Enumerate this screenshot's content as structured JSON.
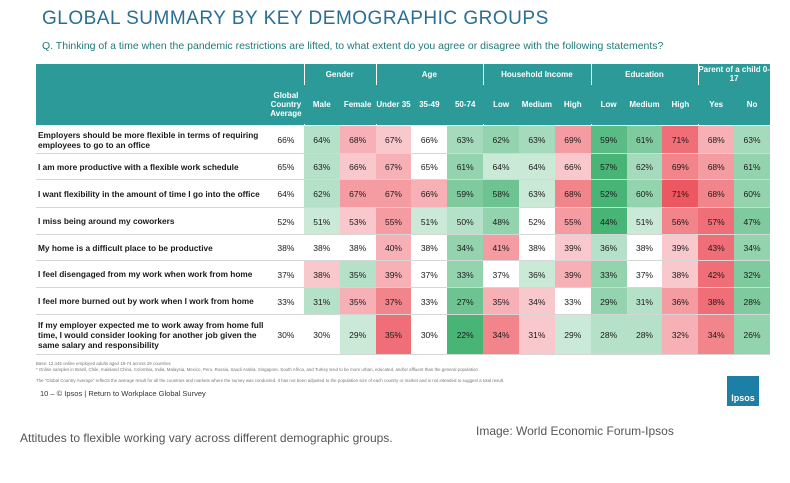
{
  "title": "GLOBAL SUMMARY BY KEY DEMOGRAPHIC GROUPS",
  "question": "Q. Thinking of a time when the pandemic restrictions are lifted, to what extent do you agree or disagree with the following statements?",
  "footnotes": [
    "Base: 12,445 online employed adults aged 18-74 across 29 countries",
    "* Online samples in Brazil, Chile, mainland China, Colombia, India, Malaysia, Mexico, Peru, Russia, Saudi Arabia, Singapore, South Africa, and Turkey tend to be more urban, educated, and/or affluent than the general population",
    "The \"Global Country Average\" reflects the average result for all the countries and markets where the survey was conducted. It has not been adjusted to the population size of each country or market and is not intended to suggest a total result."
  ],
  "page_ref": "10 –  © Ipsos | Return to Workplace Global Survey",
  "logo_text": "Ipsos",
  "caption": "Attitudes to flexible working vary across different demographic groups.",
  "credit": "Image: World Economic Forum-Ipsos",
  "colors": {
    "header": "#2b9a99",
    "high": "#ec4a55",
    "low": "#3aae6c",
    "title": "#2a6f93"
  },
  "chart_data": {
    "type": "table",
    "groups": [
      {
        "label": "",
        "span": 1
      },
      {
        "label": "Gender",
        "span": 2
      },
      {
        "label": "Age",
        "span": 3
      },
      {
        "label": "Household Income",
        "span": 3
      },
      {
        "label": "Education",
        "span": 3
      },
      {
        "label": "Parent of a child 0-17",
        "span": 2
      }
    ],
    "columns": [
      "Global Country Average",
      "Male",
      "Female",
      "Under 35",
      "35-49",
      "50-74",
      "Low",
      "Medium",
      "High",
      "Low",
      "Medium",
      "High",
      "Yes",
      "No"
    ],
    "rows": [
      {
        "statement": "Employers should be more flexible in terms of requiring employees to go to an office",
        "values": [
          66,
          64,
          68,
          67,
          66,
          63,
          62,
          63,
          69,
          59,
          61,
          71,
          68,
          63
        ]
      },
      {
        "statement": "I am more productive with a flexible work schedule",
        "values": [
          65,
          63,
          66,
          67,
          65,
          61,
          64,
          64,
          66,
          57,
          62,
          69,
          68,
          61
        ]
      },
      {
        "statement": "I want flexibility in the amount of time I go into the office",
        "values": [
          64,
          62,
          67,
          67,
          66,
          59,
          58,
          63,
          68,
          52,
          60,
          71,
          68,
          60
        ]
      },
      {
        "statement": "I miss being around my coworkers",
        "values": [
          52,
          51,
          53,
          55,
          51,
          50,
          48,
          52,
          55,
          44,
          51,
          56,
          57,
          47
        ]
      },
      {
        "statement": "My home is a difficult place to be productive",
        "values": [
          38,
          38,
          38,
          40,
          38,
          34,
          41,
          38,
          39,
          36,
          38,
          39,
          43,
          34
        ]
      },
      {
        "statement": "I feel disengaged from my work when work from home",
        "values": [
          37,
          38,
          35,
          39,
          37,
          33,
          37,
          36,
          39,
          33,
          37,
          38,
          42,
          32
        ]
      },
      {
        "statement": "I feel more burned out by work when I work from home",
        "values": [
          33,
          31,
          35,
          37,
          33,
          27,
          35,
          34,
          33,
          29,
          31,
          36,
          38,
          28
        ]
      },
      {
        "statement": "If my employer expected me to work away from home full time, I would consider looking for another job given the same salary and responsibility",
        "values": [
          30,
          30,
          29,
          35,
          30,
          22,
          34,
          31,
          29,
          28,
          28,
          32,
          34,
          26
        ]
      }
    ]
  }
}
